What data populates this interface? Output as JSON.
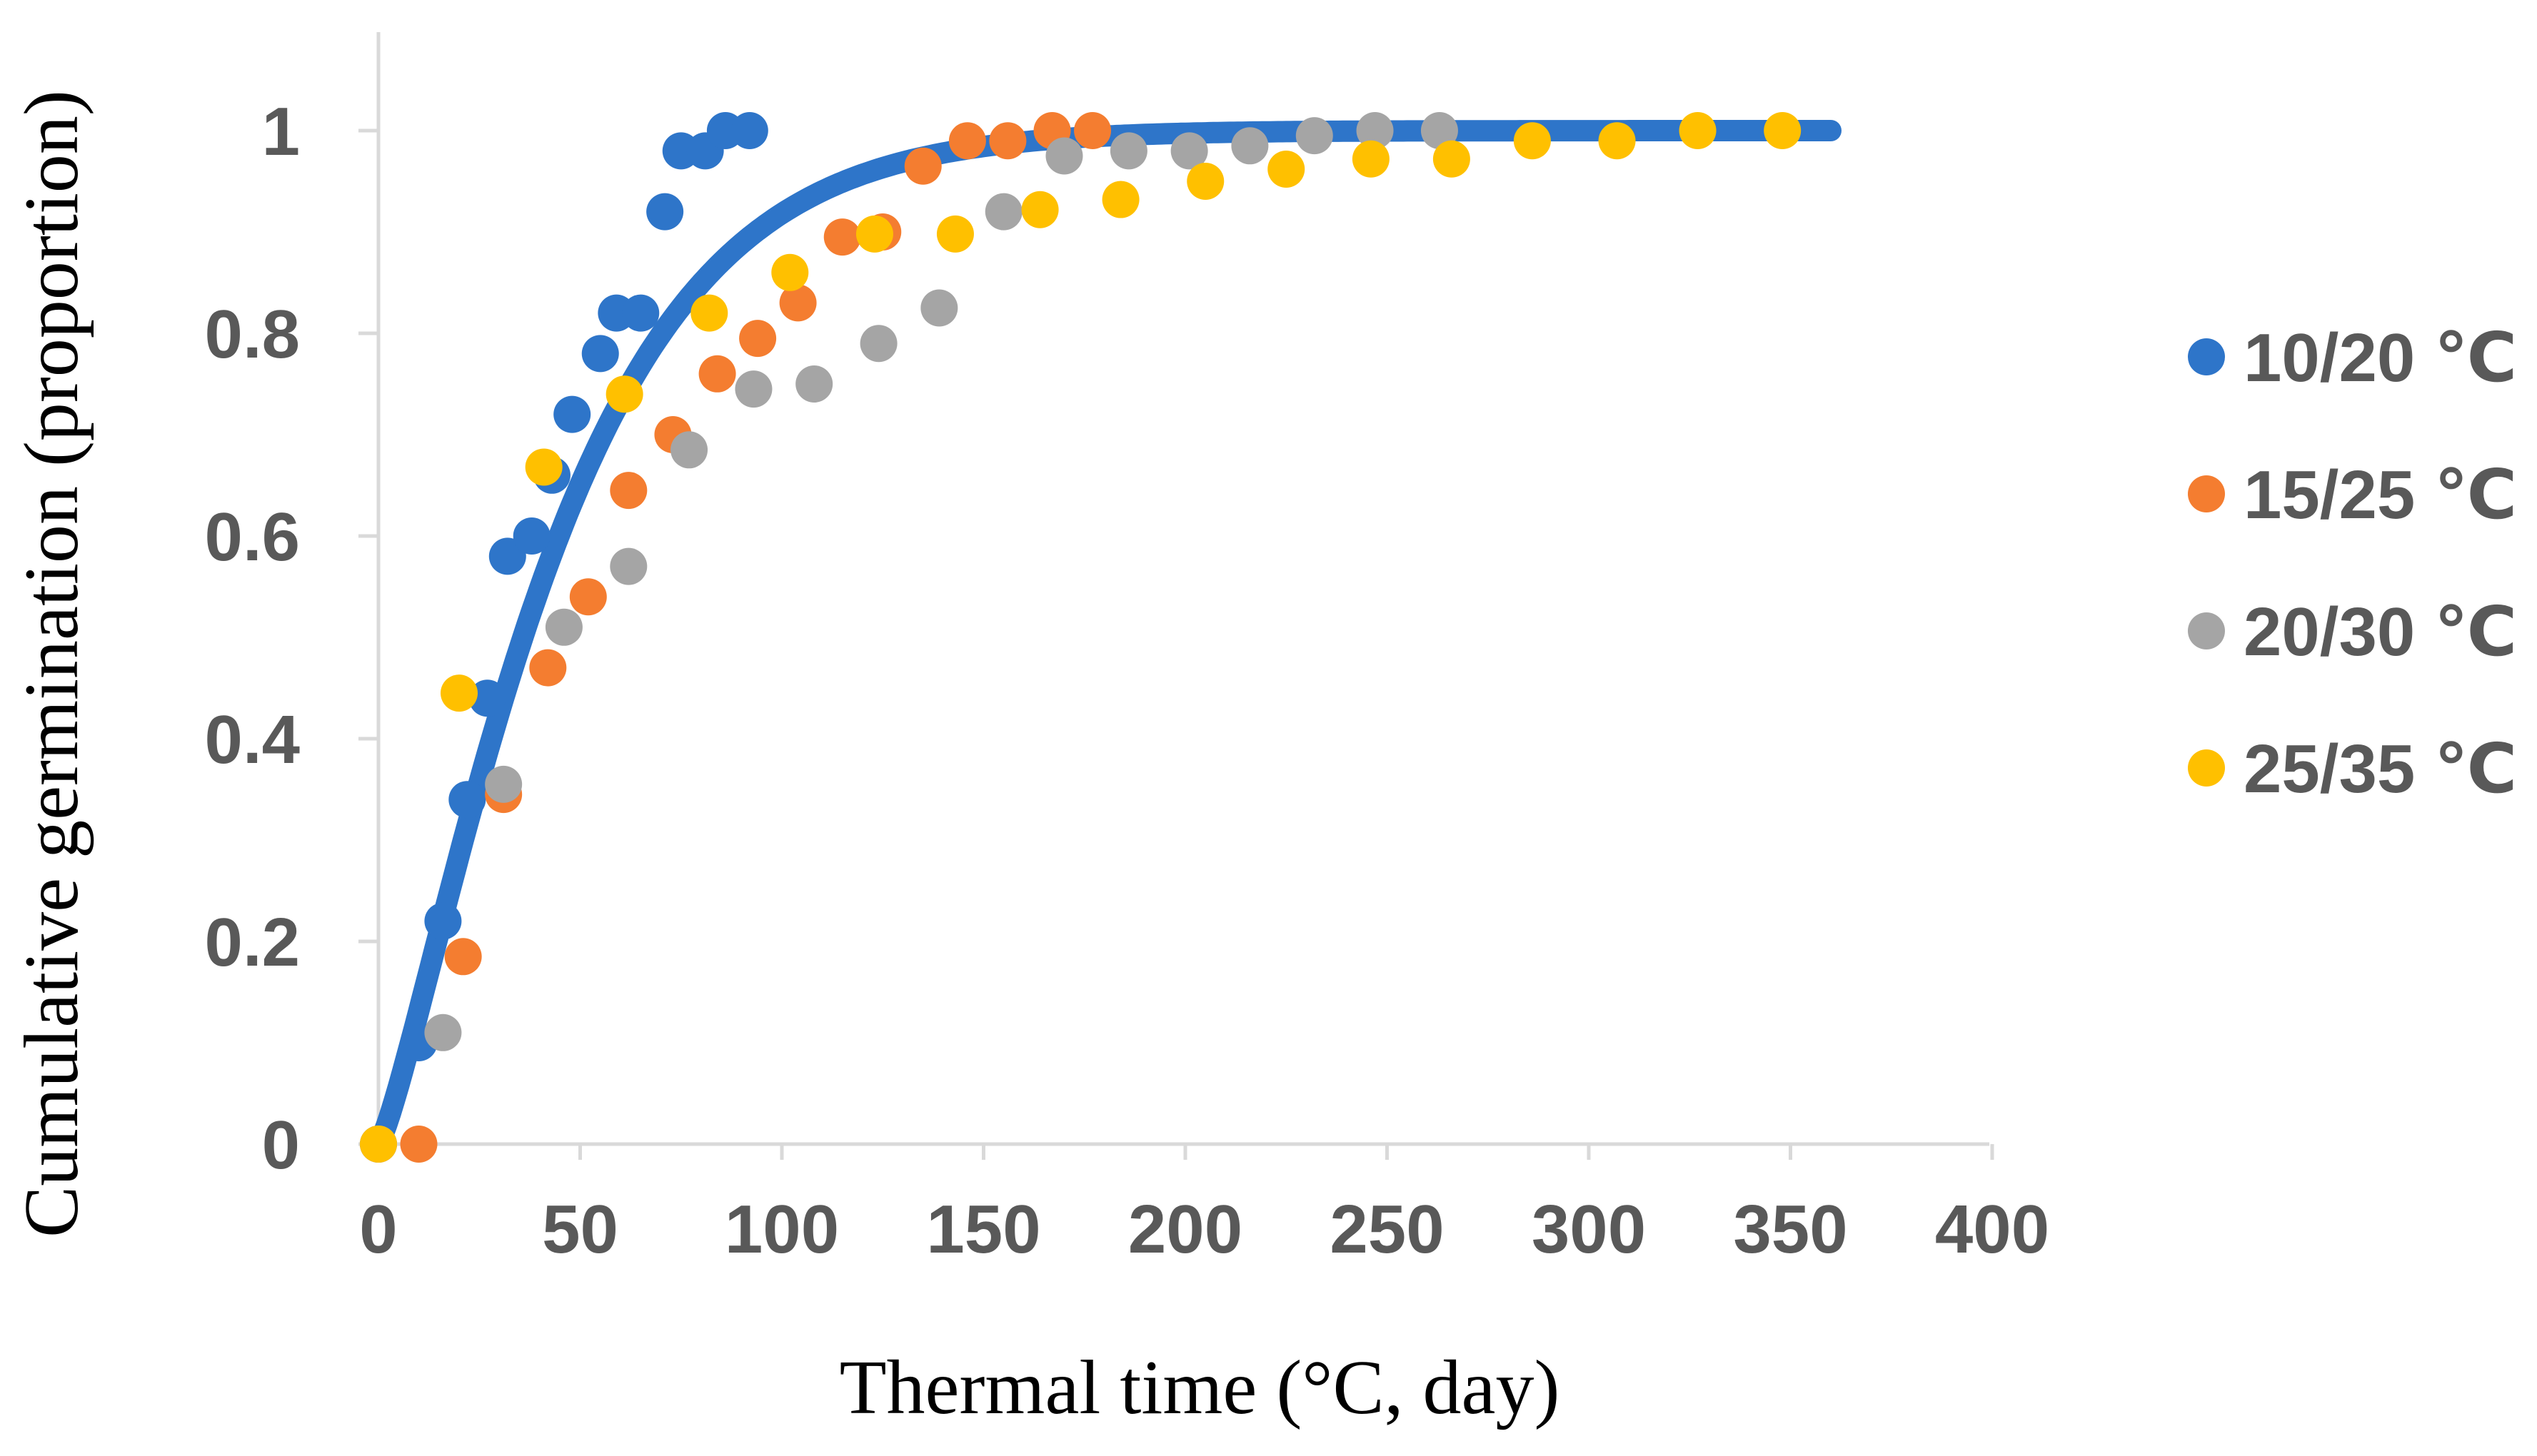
{
  "chart_data": {
    "type": "scatter",
    "title": "",
    "xlabel": "Thermal time (°C, day)",
    "ylabel": "Cumulative germination (proportion)",
    "xlim": [
      0,
      400
    ],
    "ylim": [
      0,
      1.05
    ],
    "x_ticks": [
      0,
      50,
      100,
      150,
      200,
      250,
      300,
      350,
      400
    ],
    "x_tick_labels": [
      "0",
      "50",
      "100",
      "150",
      "200",
      "250",
      "300",
      "350",
      "400"
    ],
    "y_ticks": [
      0,
      0.2,
      0.4,
      0.6,
      0.8,
      1
    ],
    "y_tick_labels": [
      "0",
      "0.2",
      "0.4",
      "0.6",
      "0.8",
      "1"
    ],
    "grid": false,
    "legend_position": "right",
    "series": [
      {
        "name": "10/20 ℃",
        "color": "#2E75C9",
        "points": [
          [
            0,
            0
          ],
          [
            10,
            0.1
          ],
          [
            16,
            0.22
          ],
          [
            22,
            0.34
          ],
          [
            27,
            0.44
          ],
          [
            32,
            0.58
          ],
          [
            38,
            0.6
          ],
          [
            43,
            0.66
          ],
          [
            48,
            0.72
          ],
          [
            55,
            0.78
          ],
          [
            59,
            0.82
          ],
          [
            65,
            0.82
          ],
          [
            71,
            0.92
          ],
          [
            75,
            0.98
          ],
          [
            81,
            0.98
          ],
          [
            86,
            1.0
          ],
          [
            92,
            1.0
          ]
        ]
      },
      {
        "name": "15/25 ℃",
        "color": "#F47D30",
        "points": [
          [
            0,
            0
          ],
          [
            10,
            0
          ],
          [
            21,
            0.185
          ],
          [
            31,
            0.345
          ],
          [
            42,
            0.47
          ],
          [
            52,
            0.54
          ],
          [
            62,
            0.645
          ],
          [
            73,
            0.7
          ],
          [
            84,
            0.76
          ],
          [
            94,
            0.795
          ],
          [
            104,
            0.83
          ],
          [
            115,
            0.895
          ],
          [
            125,
            0.9
          ],
          [
            135,
            0.965
          ],
          [
            146,
            0.99
          ],
          [
            156,
            0.99
          ],
          [
            167,
            1.0
          ],
          [
            177,
            1.0
          ]
        ]
      },
      {
        "name": "20/30 ℃",
        "color": "#A5A5A5",
        "points": [
          [
            0,
            0
          ],
          [
            16,
            0.11
          ],
          [
            31,
            0.355
          ],
          [
            46,
            0.51
          ],
          [
            62,
            0.57
          ],
          [
            77,
            0.685
          ],
          [
            93,
            0.745
          ],
          [
            108,
            0.75
          ],
          [
            124,
            0.79
          ],
          [
            139,
            0.825
          ],
          [
            155,
            0.92
          ],
          [
            170,
            0.975
          ],
          [
            186,
            0.98
          ],
          [
            201,
            0.98
          ],
          [
            216,
            0.985
          ],
          [
            232,
            0.995
          ],
          [
            247,
            1.0
          ],
          [
            263,
            1.0
          ]
        ]
      },
      {
        "name": "25/35 ℃",
        "color": "#FFC000",
        "points": [
          [
            0,
            0
          ],
          [
            20,
            0.445
          ],
          [
            41,
            0.668
          ],
          [
            61,
            0.74
          ],
          [
            82,
            0.82
          ],
          [
            102,
            0.86
          ],
          [
            123,
            0.898
          ],
          [
            143,
            0.898
          ],
          [
            164,
            0.922
          ],
          [
            184,
            0.932
          ],
          [
            205,
            0.95
          ],
          [
            225,
            0.962
          ],
          [
            246,
            0.972
          ],
          [
            266,
            0.972
          ],
          [
            286,
            0.99
          ],
          [
            307,
            0.99
          ],
          [
            327,
            1.0
          ],
          [
            348,
            1.0
          ]
        ]
      }
    ],
    "fit_curve": {
      "name": "fitted curve",
      "color": "#2E75C9",
      "model": "1 - exp(-(x/k)^b)",
      "k": 48,
      "b": 1.25,
      "x_range": [
        0,
        360
      ]
    }
  }
}
